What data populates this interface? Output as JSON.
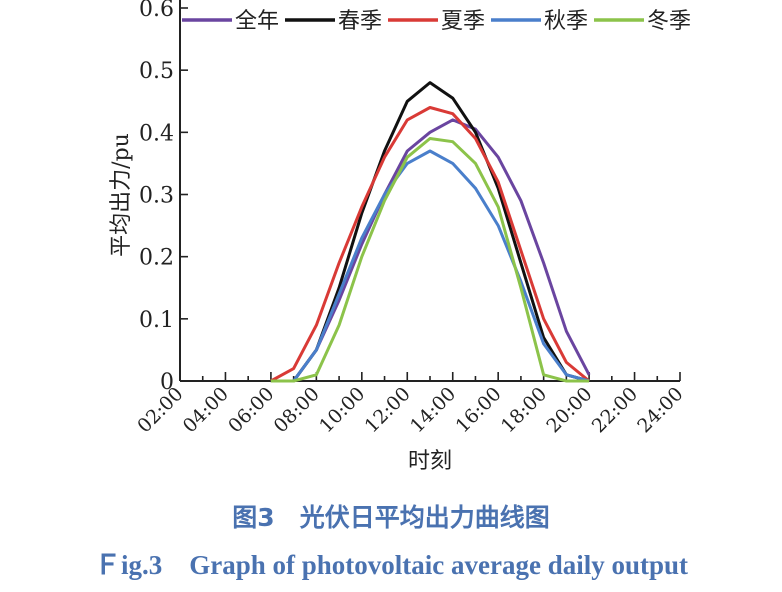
{
  "chart_data": {
    "type": "line",
    "ylabel": "平均出力/pu",
    "xlabel": "时刻",
    "ylim": [
      0,
      0.6
    ],
    "xlim_hours": [
      2,
      24
    ],
    "y_ticks": [
      "0",
      "0.1",
      "0.2",
      "0.3",
      "0.4",
      "0.5",
      "0.6"
    ],
    "x_ticks": [
      "02:00",
      "04:00",
      "06:00",
      "08:00",
      "10:00",
      "12:00",
      "14:00",
      "16:00",
      "18:00",
      "20:00",
      "22:00",
      "24:00"
    ],
    "legend_position": "top",
    "x": [
      6,
      7,
      8,
      9,
      10,
      11,
      12,
      13,
      14,
      15,
      16,
      17,
      18,
      19,
      20
    ],
    "series": [
      {
        "name": "全年",
        "color": "#6a45a0",
        "values": [
          0,
          0,
          0.05,
          0.13,
          0.22,
          0.3,
          0.37,
          0.4,
          0.42,
          0.405,
          0.36,
          0.29,
          0.19,
          0.08,
          0.01
        ]
      },
      {
        "name": "春季",
        "color": "#111111",
        "values": [
          0,
          0,
          0.05,
          0.15,
          0.27,
          0.37,
          0.45,
          0.48,
          0.455,
          0.4,
          0.31,
          0.19,
          0.07,
          0.01,
          0
        ]
      },
      {
        "name": "夏季",
        "color": "#d93a36",
        "values": [
          0,
          0.02,
          0.09,
          0.19,
          0.28,
          0.36,
          0.42,
          0.44,
          0.43,
          0.39,
          0.32,
          0.21,
          0.1,
          0.03,
          0
        ]
      },
      {
        "name": "秋季",
        "color": "#4a7fcb",
        "values": [
          0,
          0,
          0.05,
          0.14,
          0.23,
          0.3,
          0.35,
          0.37,
          0.35,
          0.31,
          0.25,
          0.16,
          0.06,
          0.01,
          0
        ]
      },
      {
        "name": "冬季",
        "color": "#8cc34a",
        "values": [
          0,
          0,
          0.01,
          0.09,
          0.2,
          0.29,
          0.36,
          0.39,
          0.385,
          0.35,
          0.28,
          0.15,
          0.01,
          0,
          0
        ]
      }
    ]
  },
  "caption": {
    "cn": "图3　光伏日平均出力曲线图",
    "en": "Ｆig.3　Graph of photovoltaic average daily output"
  }
}
